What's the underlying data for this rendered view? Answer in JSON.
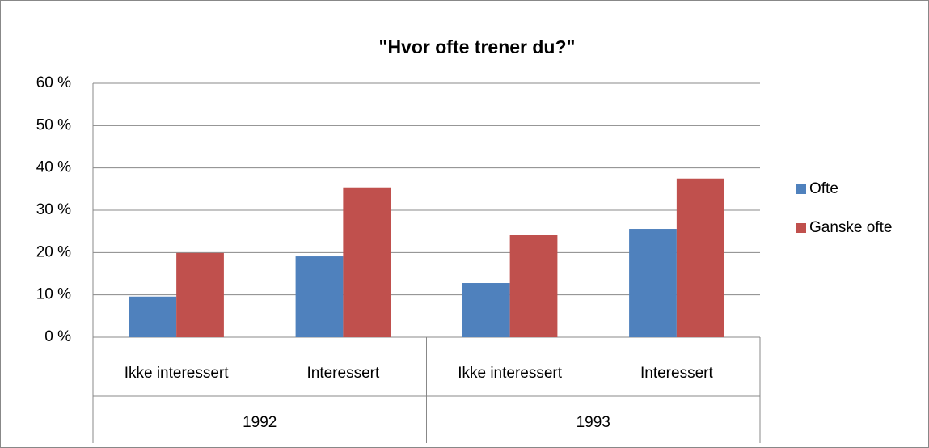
{
  "chart_data": {
    "type": "bar",
    "title": "\"Hvor ofte trener du?\"",
    "categories": [
      "Ikke interessert",
      "Interessert",
      "Ikke interessert",
      "Interessert"
    ],
    "group_labels": [
      "1992",
      "1993"
    ],
    "series": [
      {
        "name": "Ofte",
        "color": "#4f81bd",
        "values": [
          9.6,
          19.1,
          12.8,
          25.6
        ]
      },
      {
        "name": "Ganske ofte",
        "color": "#c0504d",
        "values": [
          19.9,
          35.4,
          24.1,
          37.5
        ]
      }
    ],
    "ylim": [
      0,
      60
    ],
    "yticks": [
      {
        "value": 0,
        "label": "0 %"
      },
      {
        "value": 10,
        "label": "10 %"
      },
      {
        "value": 20,
        "label": "20 %"
      },
      {
        "value": 30,
        "label": "30 %"
      },
      {
        "value": 40,
        "label": "40 %"
      },
      {
        "value": 50,
        "label": "50 %"
      },
      {
        "value": 60,
        "label": "60 %"
      }
    ],
    "grid": true,
    "legend": "right"
  }
}
